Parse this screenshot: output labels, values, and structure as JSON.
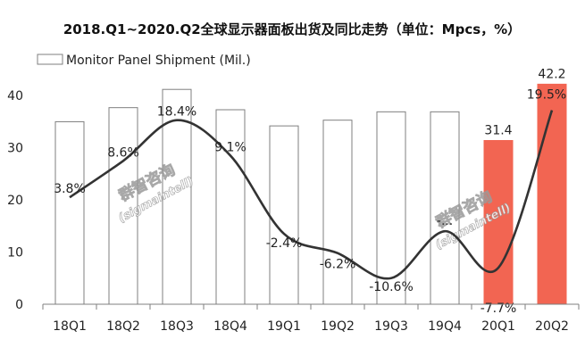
{
  "chart_data": {
    "type": "bar",
    "title": "2018.Q1~2020.Q2全球显示器面板出货及同比走势（单位：Mpcs，%）",
    "categories": [
      "18Q1",
      "18Q2",
      "18Q3",
      "18Q4",
      "19Q1",
      "19Q2",
      "19Q3",
      "19Q4",
      "20Q1",
      "20Q2"
    ],
    "ylim": [
      0,
      45
    ],
    "yticks": [
      0,
      10,
      20,
      30,
      40
    ],
    "grid": false,
    "legend": {
      "position": "top-left",
      "entries": [
        "Monitor Panel Shipment (Mil.)"
      ]
    },
    "series": [
      {
        "name": "Monitor Panel Shipment (Mil.)",
        "type": "bar",
        "values": [
          35.0,
          37.7,
          41.2,
          37.3,
          34.2,
          35.3,
          36.9,
          36.9,
          31.4,
          42.2
        ],
        "value_labels": [
          "",
          "",
          "",
          "",
          "",
          "",
          "",
          "",
          "31.4",
          "42.2"
        ],
        "colors": [
          "#ffffff",
          "#ffffff",
          "#ffffff",
          "#ffffff",
          "#ffffff",
          "#ffffff",
          "#ffffff",
          "#ffffff",
          "#f26552",
          "#f26552"
        ]
      },
      {
        "type": "line",
        "values": [
          3.8,
          8.6,
          18.4,
          9.1,
          -2.4,
          -6.2,
          -10.6,
          -1.0,
          -7.7,
          19.5
        ],
        "labels": [
          "3.8%",
          "8.6%",
          "18.4%",
          "9.1%",
          "-2.4%",
          "-6.2%",
          "-10.6%",
          "-...",
          "-7.7%",
          "19.5%"
        ],
        "line_points_on_bar_axis": [
          20.5,
          27.5,
          35.3,
          28.5,
          13.5,
          9.8,
          5.0,
          14.0,
          7.0,
          37.2
        ],
        "color": "#333333"
      }
    ]
  },
  "watermarks": [
    {
      "cn": "群智咨询",
      "en": "(sigmaintell)"
    },
    {
      "cn": "群智咨询",
      "en": "(sigmaintell)"
    }
  ],
  "colors": {
    "highlight_bar": "#f26552",
    "bar_outline": "#7f7f7f",
    "axis": "#7f7f7f",
    "line": "#333333"
  }
}
